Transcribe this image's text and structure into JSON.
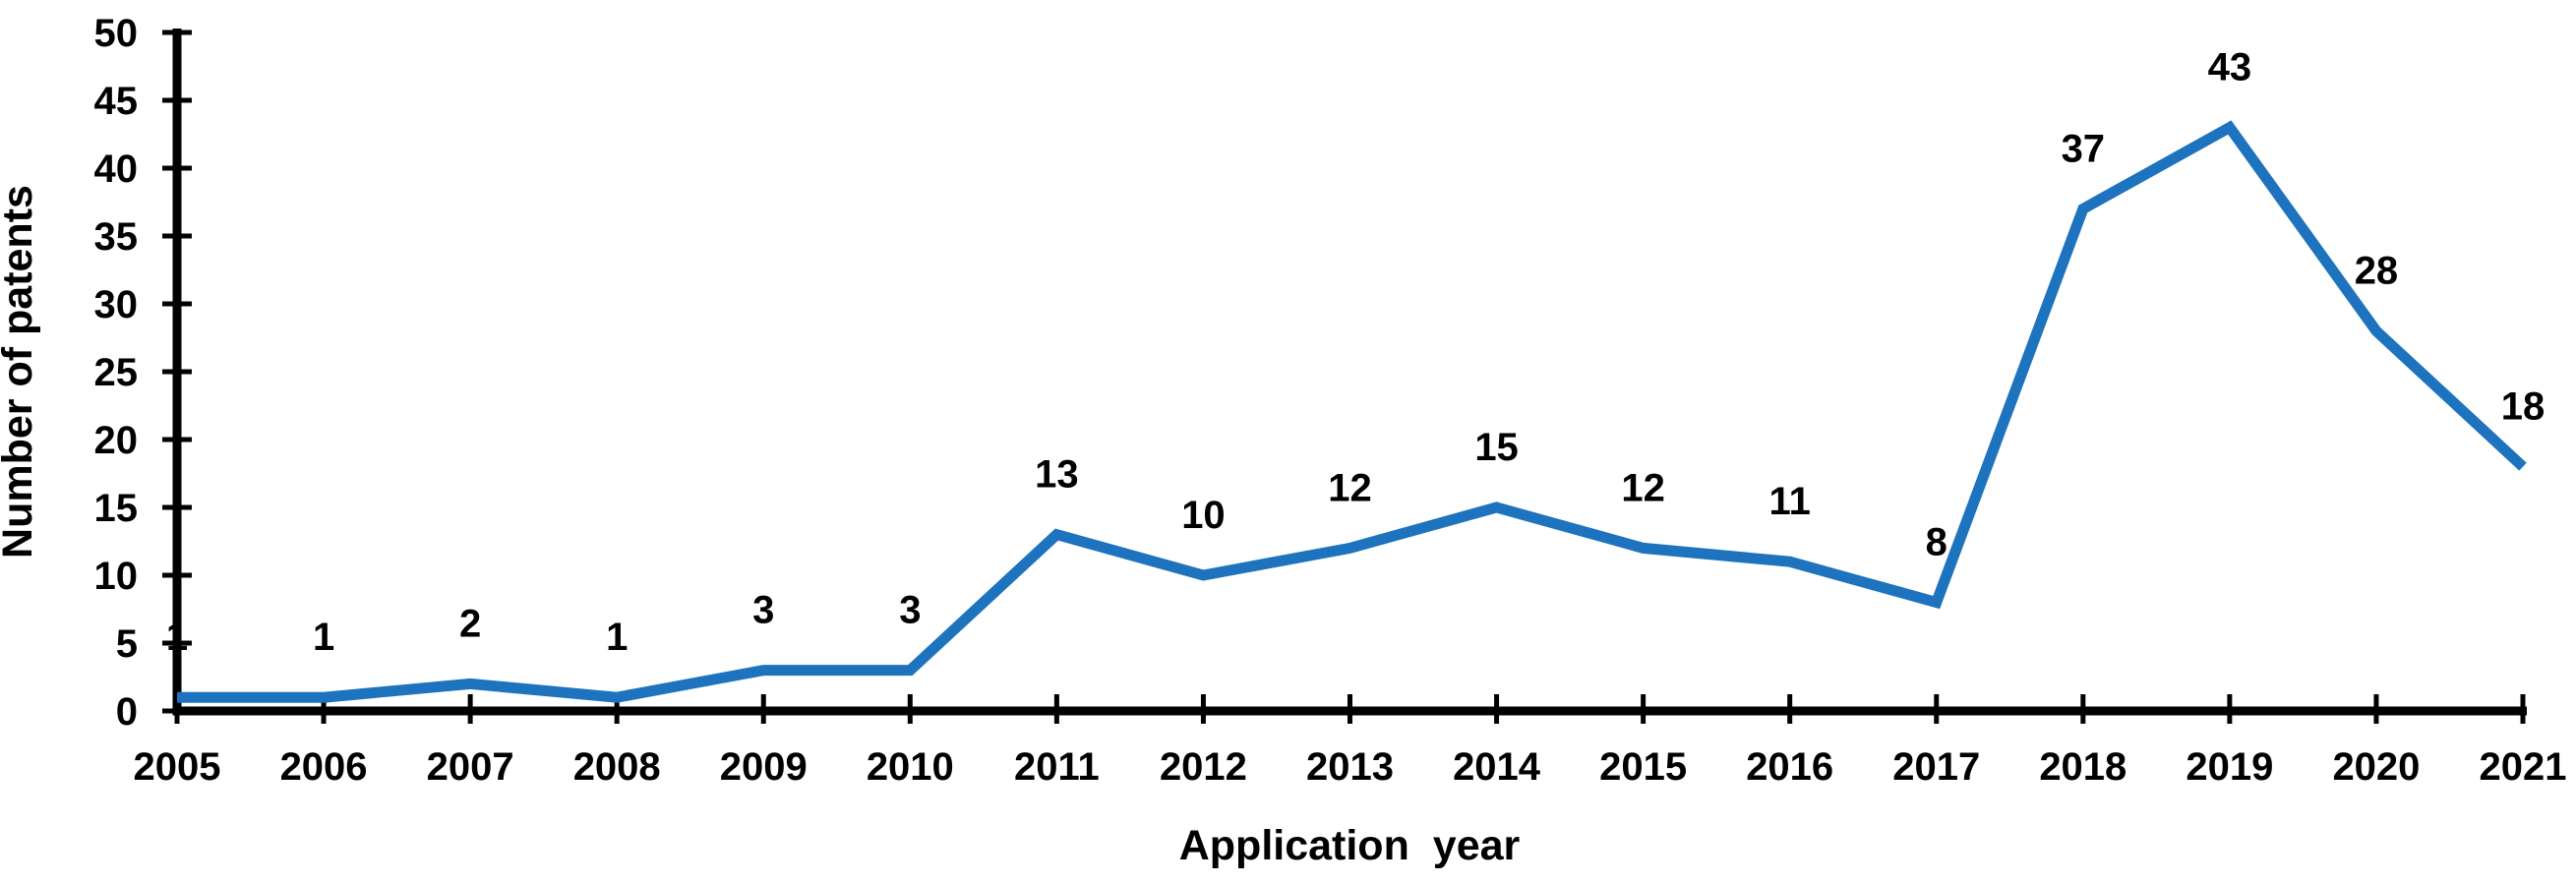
{
  "chart_data": {
    "type": "line",
    "title": "",
    "categories": [
      "2005",
      "2006",
      "2007",
      "2008",
      "2009",
      "2010",
      "2011",
      "2012",
      "2013",
      "2014",
      "2015",
      "2016",
      "2017",
      "2018",
      "2019",
      "2020",
      "2021"
    ],
    "values": [
      1,
      1,
      2,
      1,
      3,
      3,
      13,
      10,
      12,
      15,
      12,
      11,
      8,
      37,
      43,
      28,
      18
    ],
    "series": [
      {
        "name": "Number of patents",
        "values": [
          1,
          1,
          2,
          1,
          3,
          3,
          13,
          10,
          12,
          15,
          12,
          11,
          8,
          37,
          43,
          28,
          18
        ]
      }
    ],
    "xlabel": "Application year",
    "ylabel": "Number of patents",
    "ylim": [
      0,
      50
    ],
    "yticks": [
      0,
      5,
      10,
      15,
      20,
      25,
      30,
      35,
      40,
      45,
      50
    ],
    "grid": false,
    "legend_position": "none",
    "data_labels_shown": true,
    "colors": {
      "line": "#1E73BE",
      "axis": "#000000",
      "text": "#000000",
      "background": "#FFFFFF"
    }
  }
}
